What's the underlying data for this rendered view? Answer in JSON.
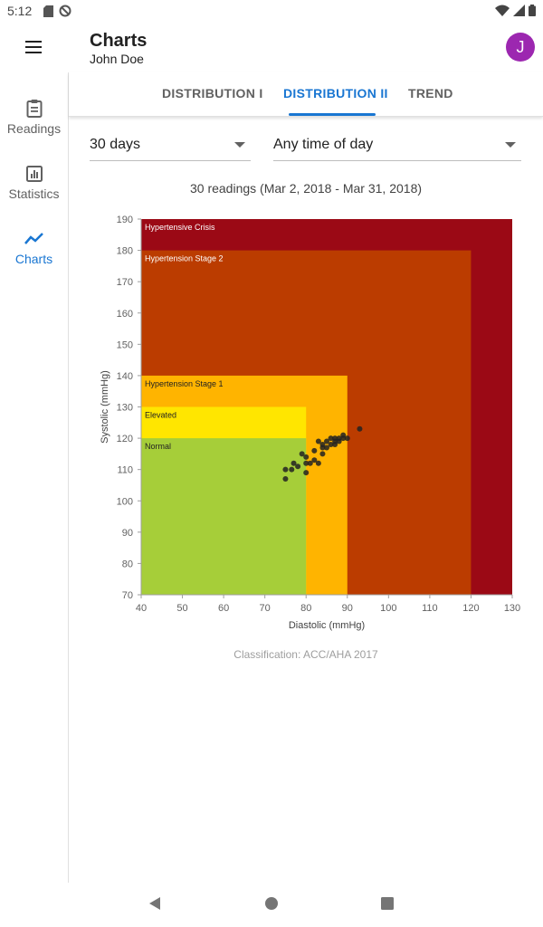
{
  "status_bar": {
    "time": "5:12"
  },
  "app_bar": {
    "title": "Charts",
    "subtitle": "John Doe",
    "avatar_letter": "J"
  },
  "nav_rail": {
    "items": [
      {
        "label": "Readings",
        "icon": "clipboard-icon"
      },
      {
        "label": "Statistics",
        "icon": "bar-chart-icon"
      },
      {
        "label": "Charts",
        "icon": "trend-line-icon",
        "active": true
      }
    ]
  },
  "tabs": [
    {
      "label": "DISTRIBUTION I"
    },
    {
      "label": "DISTRIBUTION II",
      "active": true
    },
    {
      "label": "TREND"
    }
  ],
  "filters": {
    "period": "30 days",
    "time_of_day": "Any time of day"
  },
  "summary": "30 readings (Mar 2, 2018 - Mar 31, 2018)",
  "chart_data": {
    "type": "scatter",
    "xlabel": "Diastolic (mmHg)",
    "ylabel": "Systolic (mmHg)",
    "xlim": [
      40,
      130
    ],
    "ylim": [
      70,
      190
    ],
    "xticks": [
      40,
      50,
      60,
      70,
      80,
      90,
      100,
      110,
      120,
      130
    ],
    "yticks": [
      70,
      80,
      90,
      100,
      110,
      120,
      130,
      140,
      150,
      160,
      170,
      180,
      190
    ],
    "zones": [
      {
        "label": "Hypertensive Crisis",
        "x_max": 130,
        "y_max": 190,
        "color": "#9b0915",
        "text_color": "#ffffff"
      },
      {
        "label": "Hypertension Stage 2",
        "x_max": 120,
        "y_max": 180,
        "color": "#bb3c00",
        "text_color": "#ffffff"
      },
      {
        "label": "Hypertension Stage 1",
        "x_max": 90,
        "y_max": 140,
        "color": "#ffb400",
        "text_color": "#222222"
      },
      {
        "label": "Elevated",
        "x_max": 80,
        "y_max": 130,
        "color": "#ffe600",
        "text_color": "#222222"
      },
      {
        "label": "Normal",
        "x_max": 80,
        "y_max": 120,
        "color": "#a6ce39",
        "text_color": "#222222"
      }
    ],
    "points": [
      [
        75,
        107
      ],
      [
        75,
        110
      ],
      [
        76.5,
        110
      ],
      [
        77,
        112
      ],
      [
        78,
        111
      ],
      [
        79,
        115
      ],
      [
        80,
        109
      ],
      [
        80,
        112
      ],
      [
        80,
        114
      ],
      [
        81,
        112
      ],
      [
        82,
        113
      ],
      [
        82,
        116
      ],
      [
        83,
        112
      ],
      [
        83,
        119
      ],
      [
        84,
        115
      ],
      [
        84,
        117
      ],
      [
        84,
        118
      ],
      [
        86,
        118
      ],
      [
        86,
        120
      ],
      [
        87,
        118
      ],
      [
        87,
        119
      ],
      [
        87,
        120
      ],
      [
        88,
        119
      ],
      [
        88,
        120
      ],
      [
        89,
        120
      ],
      [
        89,
        121
      ],
      [
        90,
        120
      ],
      [
        93,
        123
      ],
      [
        85,
        119
      ],
      [
        85,
        117
      ]
    ]
  },
  "footer_note": "Classification: ACC/AHA 2017"
}
